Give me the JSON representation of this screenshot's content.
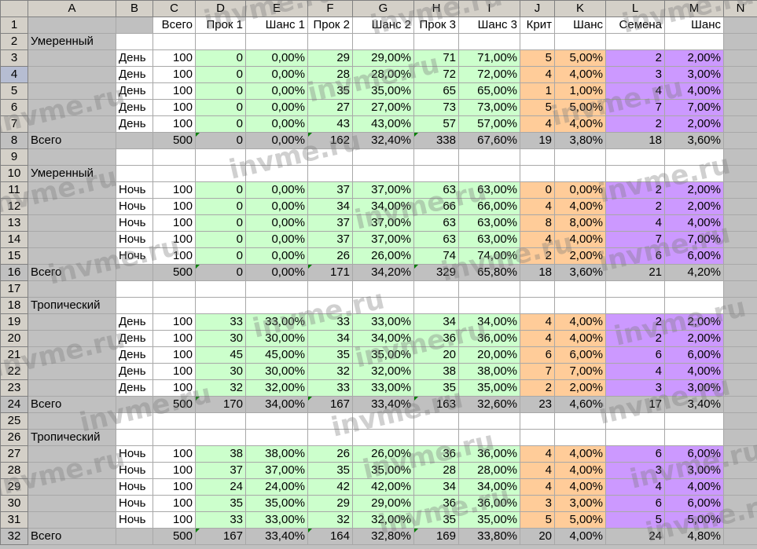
{
  "columns": [
    "",
    "A",
    "B",
    "C",
    "D",
    "E",
    "F",
    "G",
    "H",
    "I",
    "J",
    "K",
    "L",
    "M",
    "N"
  ],
  "header_row": {
    "num": "1",
    "cells": [
      "",
      "",
      "Всего",
      "Прок 1",
      "Шанс 1",
      "Прок 2",
      "Шанс 2",
      "Прок 3",
      "Шанс 3",
      "Крит",
      "Шанс",
      "Семена",
      "Шанс",
      ""
    ]
  },
  "blocks": [
    {
      "title_row": "2",
      "title": "Умеренный",
      "rows": [
        {
          "num": "3",
          "b": "День",
          "c": "100",
          "d": "0",
          "e": "0,00%",
          "f": "29",
          "g": "29,00%",
          "h": "71",
          "i": "71,00%",
          "j": "5",
          "k": "5,00%",
          "l": "2",
          "m": "2,00%"
        },
        {
          "num": "4",
          "b": "День",
          "c": "100",
          "d": "0",
          "e": "0,00%",
          "f": "28",
          "g": "28,00%",
          "h": "72",
          "i": "72,00%",
          "j": "4",
          "k": "4,00%",
          "l": "3",
          "m": "3,00%"
        },
        {
          "num": "5",
          "b": "День",
          "c": "100",
          "d": "0",
          "e": "0,00%",
          "f": "35",
          "g": "35,00%",
          "h": "65",
          "i": "65,00%",
          "j": "1",
          "k": "1,00%",
          "l": "4",
          "m": "4,00%"
        },
        {
          "num": "6",
          "b": "День",
          "c": "100",
          "d": "0",
          "e": "0,00%",
          "f": "27",
          "g": "27,00%",
          "h": "73",
          "i": "73,00%",
          "j": "5",
          "k": "5,00%",
          "l": "7",
          "m": "7,00%"
        },
        {
          "num": "7",
          "b": "День",
          "c": "100",
          "d": "0",
          "e": "0,00%",
          "f": "43",
          "g": "43,00%",
          "h": "57",
          "i": "57,00%",
          "j": "4",
          "k": "4,00%",
          "l": "2",
          "m": "2,00%"
        }
      ],
      "total": {
        "num": "8",
        "a": "Всего",
        "c": "500",
        "d": "0",
        "e": "0,00%",
        "f": "162",
        "g": "32,40%",
        "h": "338",
        "i": "67,60%",
        "j": "19",
        "k": "3,80%",
        "l": "18",
        "m": "3,60%"
      },
      "blank_row": "9"
    },
    {
      "title_row": "10",
      "title": "Умеренный",
      "rows": [
        {
          "num": "11",
          "b": "Ночь",
          "c": "100",
          "d": "0",
          "e": "0,00%",
          "f": "37",
          "g": "37,00%",
          "h": "63",
          "i": "63,00%",
          "j": "0",
          "k": "0,00%",
          "l": "2",
          "m": "2,00%"
        },
        {
          "num": "12",
          "b": "Ночь",
          "c": "100",
          "d": "0",
          "e": "0,00%",
          "f": "34",
          "g": "34,00%",
          "h": "66",
          "i": "66,00%",
          "j": "4",
          "k": "4,00%",
          "l": "2",
          "m": "2,00%"
        },
        {
          "num": "13",
          "b": "Ночь",
          "c": "100",
          "d": "0",
          "e": "0,00%",
          "f": "37",
          "g": "37,00%",
          "h": "63",
          "i": "63,00%",
          "j": "8",
          "k": "8,00%",
          "l": "4",
          "m": "4,00%"
        },
        {
          "num": "14",
          "b": "Ночь",
          "c": "100",
          "d": "0",
          "e": "0,00%",
          "f": "37",
          "g": "37,00%",
          "h": "63",
          "i": "63,00%",
          "j": "4",
          "k": "4,00%",
          "l": "7",
          "m": "7,00%"
        },
        {
          "num": "15",
          "b": "Ночь",
          "c": "100",
          "d": "0",
          "e": "0,00%",
          "f": "26",
          "g": "26,00%",
          "h": "74",
          "i": "74,00%",
          "j": "2",
          "k": "2,00%",
          "l": "6",
          "m": "6,00%"
        }
      ],
      "total": {
        "num": "16",
        "a": "Всего",
        "c": "500",
        "d": "0",
        "e": "0,00%",
        "f": "171",
        "g": "34,20%",
        "h": "329",
        "i": "65,80%",
        "j": "18",
        "k": "3,60%",
        "l": "21",
        "m": "4,20%"
      },
      "blank_row": "17"
    },
    {
      "title_row": "18",
      "title": "Тропический",
      "rows": [
        {
          "num": "19",
          "b": "День",
          "c": "100",
          "d": "33",
          "e": "33,00%",
          "f": "33",
          "g": "33,00%",
          "h": "34",
          "i": "34,00%",
          "j": "4",
          "k": "4,00%",
          "l": "2",
          "m": "2,00%"
        },
        {
          "num": "20",
          "b": "День",
          "c": "100",
          "d": "30",
          "e": "30,00%",
          "f": "34",
          "g": "34,00%",
          "h": "36",
          "i": "36,00%",
          "j": "4",
          "k": "4,00%",
          "l": "2",
          "m": "2,00%"
        },
        {
          "num": "21",
          "b": "День",
          "c": "100",
          "d": "45",
          "e": "45,00%",
          "f": "35",
          "g": "35,00%",
          "h": "20",
          "i": "20,00%",
          "j": "6",
          "k": "6,00%",
          "l": "6",
          "m": "6,00%"
        },
        {
          "num": "22",
          "b": "День",
          "c": "100",
          "d": "30",
          "e": "30,00%",
          "f": "32",
          "g": "32,00%",
          "h": "38",
          "i": "38,00%",
          "j": "7",
          "k": "7,00%",
          "l": "4",
          "m": "4,00%"
        },
        {
          "num": "23",
          "b": "День",
          "c": "100",
          "d": "32",
          "e": "32,00%",
          "f": "33",
          "g": "33,00%",
          "h": "35",
          "i": "35,00%",
          "j": "2",
          "k": "2,00%",
          "l": "3",
          "m": "3,00%"
        }
      ],
      "total": {
        "num": "24",
        "a": "Всего",
        "c": "500",
        "d": "170",
        "e": "34,00%",
        "f": "167",
        "g": "33,40%",
        "h": "163",
        "i": "32,60%",
        "j": "23",
        "k": "4,60%",
        "l": "17",
        "m": "3,40%"
      },
      "blank_row": "25"
    },
    {
      "title_row": "26",
      "title": "Тропический",
      "rows": [
        {
          "num": "27",
          "b": "Ночь",
          "c": "100",
          "d": "38",
          "e": "38,00%",
          "f": "26",
          "g": "26,00%",
          "h": "36",
          "i": "36,00%",
          "j": "4",
          "k": "4,00%",
          "l": "6",
          "m": "6,00%"
        },
        {
          "num": "28",
          "b": "Ночь",
          "c": "100",
          "d": "37",
          "e": "37,00%",
          "f": "35",
          "g": "35,00%",
          "h": "28",
          "i": "28,00%",
          "j": "4",
          "k": "4,00%",
          "l": "3",
          "m": "3,00%"
        },
        {
          "num": "29",
          "b": "Ночь",
          "c": "100",
          "d": "24",
          "e": "24,00%",
          "f": "42",
          "g": "42,00%",
          "h": "34",
          "i": "34,00%",
          "j": "4",
          "k": "4,00%",
          "l": "4",
          "m": "4,00%"
        },
        {
          "num": "30",
          "b": "Ночь",
          "c": "100",
          "d": "35",
          "e": "35,00%",
          "f": "29",
          "g": "29,00%",
          "h": "36",
          "i": "36,00%",
          "j": "3",
          "k": "3,00%",
          "l": "6",
          "m": "6,00%"
        },
        {
          "num": "31",
          "b": "Ночь",
          "c": "100",
          "d": "33",
          "e": "33,00%",
          "f": "32",
          "g": "32,00%",
          "h": "35",
          "i": "35,00%",
          "j": "5",
          "k": "5,00%",
          "l": "5",
          "m": "5,00%"
        }
      ],
      "total": {
        "num": "32",
        "a": "Всего",
        "c": "500",
        "d": "167",
        "e": "33,40%",
        "f": "164",
        "g": "32,80%",
        "h": "169",
        "i": "33,80%",
        "j": "20",
        "k": "4,00%",
        "l": "24",
        "m": "4,80%"
      }
    }
  ],
  "selected_row": "4",
  "watermark": "invme.ru",
  "colors": {
    "green": "#ccffcc",
    "orange": "#ffcc99",
    "purple": "#cc99ff",
    "gray": "#c0c0c0",
    "header": "#d4d0c8"
  }
}
